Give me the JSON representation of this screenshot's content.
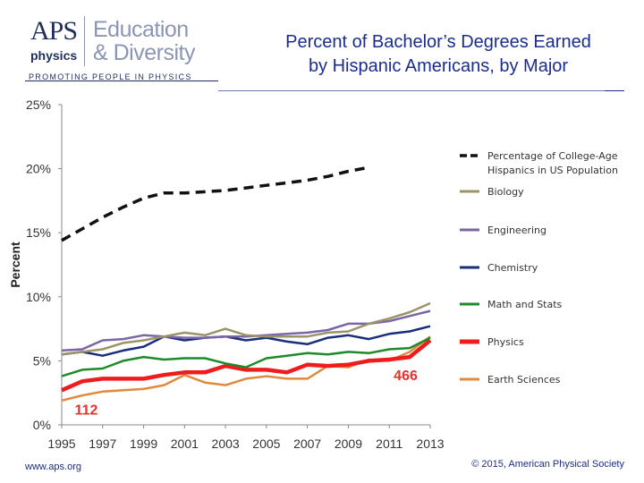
{
  "header": {
    "logo": {
      "aps": "APS",
      "physics": "physics",
      "edu_line1": "Education",
      "edu_line2": "& Diversity",
      "tagline": "PROMOTING PEOPLE IN PHYSICS"
    }
  },
  "footer": {
    "left": "www.aps.org",
    "right": "© 2015, American Physical Society"
  },
  "chart_data": {
    "type": "line",
    "title_line1": "Percent of Bachelor’s Degrees Earned",
    "title_line2": "by Hispanic Americans, by Major",
    "ylabel": "Percent",
    "xlabel": "",
    "xlim": [
      1995,
      2013
    ],
    "ylim": [
      0,
      25
    ],
    "x_ticks": [
      "1995",
      "1997",
      "1999",
      "2001",
      "2003",
      "2005",
      "2007",
      "2009",
      "2011",
      "2013"
    ],
    "y_ticks": [
      "0%",
      "5%",
      "10%",
      "15%",
      "20%",
      "25%"
    ],
    "grid": false,
    "legend_position": "right",
    "series": [
      {
        "name": "Percentage of College-Age Hispanics in US Population",
        "color": "#111111",
        "dashed": true,
        "x": [
          1995,
          1996,
          1997,
          1998,
          1999,
          2000,
          2001,
          2002,
          2003,
          2004,
          2005,
          2006,
          2007,
          2008,
          2009,
          2010
        ],
        "values": [
          14.4,
          15.3,
          16.2,
          17.0,
          17.7,
          18.1,
          18.1,
          18.2,
          18.3,
          18.5,
          18.7,
          18.9,
          19.1,
          19.4,
          19.8,
          20.1
        ]
      },
      {
        "name": "Biology",
        "color": "#9a9468",
        "dashed": false,
        "x": [
          1995,
          1996,
          1997,
          1998,
          1999,
          2000,
          2001,
          2002,
          2003,
          2004,
          2005,
          2006,
          2007,
          2008,
          2009,
          2010,
          2011,
          2012,
          2013
        ],
        "values": [
          5.5,
          5.7,
          5.9,
          6.4,
          6.6,
          6.9,
          7.2,
          7.0,
          7.5,
          7.0,
          6.9,
          6.9,
          6.9,
          7.2,
          7.3,
          7.9,
          8.3,
          8.8,
          9.5
        ]
      },
      {
        "name": "Engineering",
        "color": "#7a65a6",
        "dashed": false,
        "x": [
          1995,
          1996,
          1997,
          1998,
          1999,
          2000,
          2001,
          2002,
          2003,
          2004,
          2005,
          2006,
          2007,
          2008,
          2009,
          2010,
          2011,
          2012,
          2013
        ],
        "values": [
          5.8,
          5.9,
          6.6,
          6.7,
          7.0,
          6.9,
          6.8,
          6.8,
          6.9,
          6.9,
          7.0,
          7.1,
          7.2,
          7.4,
          7.9,
          7.9,
          8.1,
          8.5,
          8.9
        ]
      },
      {
        "name": "Chemistry",
        "color": "#1b2e7c",
        "dashed": false,
        "x": [
          1995,
          1996,
          1997,
          1998,
          1999,
          2000,
          2001,
          2002,
          2003,
          2004,
          2005,
          2006,
          2007,
          2008,
          2009,
          2010,
          2011,
          2012,
          2013
        ],
        "values": [
          5.5,
          5.7,
          5.4,
          5.8,
          6.1,
          6.9,
          6.6,
          6.8,
          6.9,
          6.6,
          6.8,
          6.5,
          6.3,
          6.8,
          7.0,
          6.7,
          7.1,
          7.3,
          7.7
        ]
      },
      {
        "name": "Math and Stats",
        "color": "#1f8a2a",
        "dashed": false,
        "x": [
          1995,
          1996,
          1997,
          1998,
          1999,
          2000,
          2001,
          2002,
          2003,
          2004,
          2005,
          2006,
          2007,
          2008,
          2009,
          2010,
          2011,
          2012,
          2013
        ],
        "values": [
          3.8,
          4.3,
          4.4,
          5.0,
          5.3,
          5.1,
          5.2,
          5.2,
          4.8,
          4.5,
          5.2,
          5.4,
          5.6,
          5.5,
          5.7,
          5.6,
          5.9,
          6.0,
          6.8
        ]
      },
      {
        "name": "Physics",
        "color": "#ee1c1c",
        "dashed": false,
        "x": [
          1995,
          1996,
          1997,
          1998,
          1999,
          2000,
          2001,
          2002,
          2003,
          2004,
          2005,
          2006,
          2007,
          2008,
          2009,
          2010,
          2011,
          2012,
          2013
        ],
        "values": [
          2.7,
          3.4,
          3.6,
          3.6,
          3.6,
          3.9,
          4.1,
          4.1,
          4.6,
          4.3,
          4.3,
          4.1,
          4.7,
          4.6,
          4.7,
          5.0,
          5.1,
          5.3,
          6.6
        ]
      },
      {
        "name": "Earth Sciences",
        "color": "#e08a3e",
        "dashed": false,
        "x": [
          1995,
          1996,
          1997,
          1998,
          1999,
          2000,
          2001,
          2002,
          2003,
          2004,
          2005,
          2006,
          2007,
          2008,
          2009,
          2010,
          2011,
          2012,
          2013
        ],
        "values": [
          1.9,
          2.3,
          2.6,
          2.7,
          2.8,
          3.1,
          3.9,
          3.3,
          3.1,
          3.6,
          3.8,
          3.6,
          3.6,
          4.6,
          4.5,
          5.1,
          5.0,
          5.7,
          6.9
        ]
      }
    ],
    "annotations": [
      {
        "text": "112",
        "x": 1996.2,
        "y": 0.8
      },
      {
        "text": "466",
        "x": 2011.8,
        "y": 3.5
      }
    ]
  }
}
